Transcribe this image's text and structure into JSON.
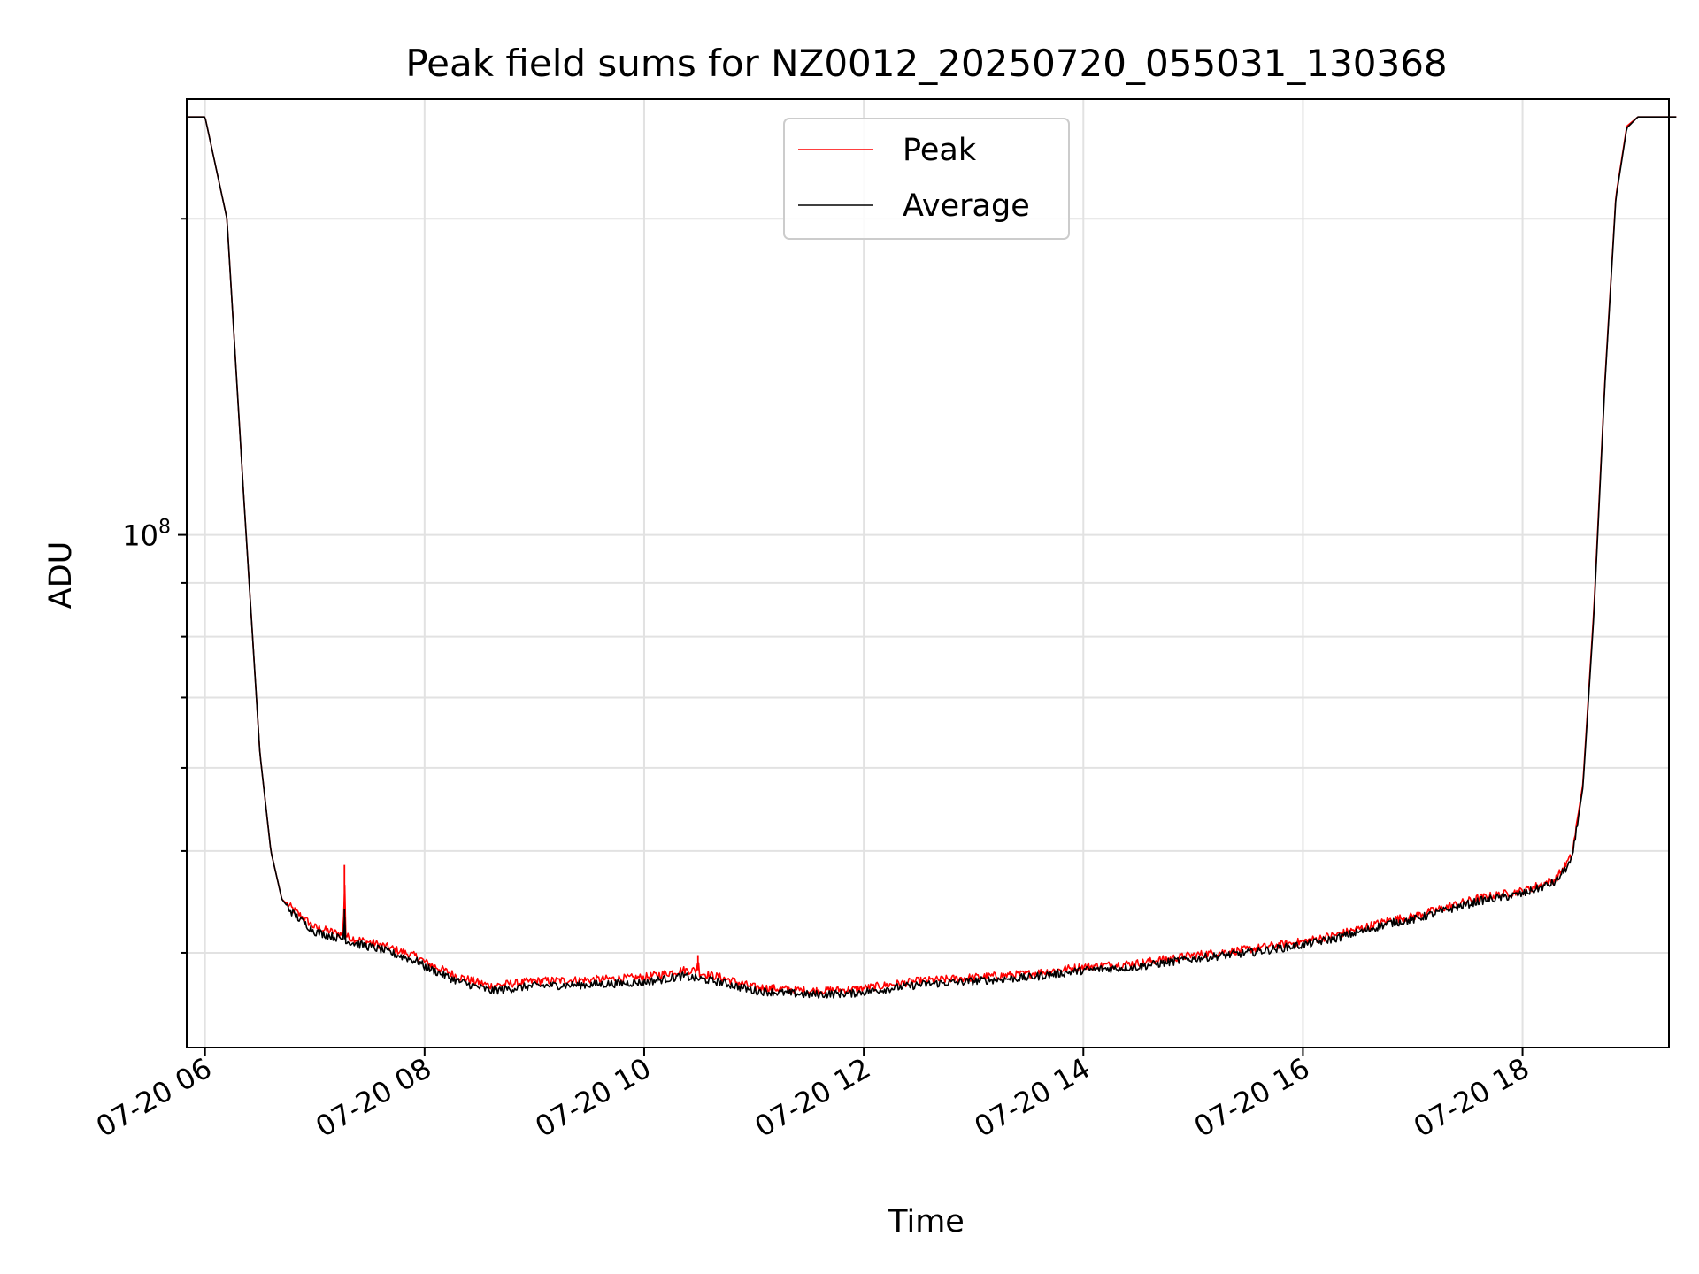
{
  "chart_data": {
    "type": "line",
    "title": "Peak field sums for NZ0012_20250720_055031_130368",
    "xlabel": "Time",
    "ylabel": "ADU",
    "x_axis": {
      "type": "time",
      "range": [
        "07-20 05:50",
        "07-20 19:20"
      ],
      "ticks": [
        "07-20 06",
        "07-20 08",
        "07-20 10",
        "07-20 12",
        "07-20 14",
        "07-20 16",
        "07-20 18"
      ],
      "tick_hours": [
        6,
        8,
        10,
        12,
        14,
        16,
        18
      ]
    },
    "y_axis": {
      "scale": "log",
      "range": [
        32500000,
        260000000
      ],
      "major_ticks": [
        {
          "value": 100000000,
          "label_base": "10",
          "label_exp": "8"
        }
      ],
      "minor_ticks": [
        40000000,
        50000000,
        60000000,
        70000000,
        80000000,
        90000000,
        200000000
      ]
    },
    "grid": true,
    "legend": {
      "placement": "upper-center",
      "entries": [
        {
          "name": "Peak",
          "color": "#ff0000"
        },
        {
          "name": "Average",
          "color": "#000000"
        }
      ]
    },
    "series": [
      {
        "name": "Peak",
        "color": "#ff0000",
        "x_hours": [
          5.85,
          6.0,
          6.2,
          6.35,
          6.5,
          6.6,
          6.7,
          6.8,
          7.0,
          7.26,
          7.27,
          7.28,
          7.3,
          7.6,
          7.95,
          8.0,
          8.3,
          8.6,
          9.0,
          9.5,
          10.0,
          10.35,
          10.48,
          10.49,
          10.5,
          10.7,
          11.0,
          11.5,
          11.9,
          12.5,
          13.0,
          13.5,
          14.0,
          14.5,
          15.0,
          15.5,
          16.0,
          16.3,
          16.6,
          16.8,
          17.0,
          17.3,
          17.6,
          18.0,
          18.3,
          18.45,
          18.55,
          18.65,
          18.75,
          18.85,
          18.95,
          19.05,
          19.1,
          19.2,
          19.4
        ],
        "values": [
          250000000,
          250000000,
          200000000,
          110000000,
          62000000,
          50000000,
          45000000,
          44000000,
          42300000,
          41600000,
          48500000,
          41600000,
          41400000,
          40700000,
          39600000,
          39200000,
          38000000,
          37200000,
          37600000,
          37700000,
          37900000,
          38500000,
          38500000,
          39800000,
          38300000,
          37900000,
          37100000,
          36800000,
          36900000,
          37600000,
          37900000,
          38200000,
          38800000,
          39100000,
          39800000,
          40300000,
          41000000,
          41600000,
          42400000,
          43000000,
          43300000,
          44200000,
          45100000,
          45800000,
          47000000,
          49500000,
          58000000,
          85000000,
          140000000,
          210000000,
          245000000,
          250000000,
          250000000,
          250000000,
          250000000
        ]
      },
      {
        "name": "Average",
        "color": "#000000",
        "x_hours": [
          5.85,
          6.0,
          6.2,
          6.35,
          6.5,
          6.6,
          6.7,
          6.8,
          7.0,
          7.26,
          7.27,
          7.28,
          7.3,
          7.6,
          7.95,
          8.0,
          8.3,
          8.6,
          9.0,
          9.5,
          10.0,
          10.35,
          10.7,
          11.0,
          11.5,
          11.9,
          12.5,
          13.0,
          13.5,
          14.0,
          14.5,
          15.0,
          15.5,
          16.0,
          16.3,
          16.6,
          16.8,
          17.0,
          17.3,
          17.6,
          18.0,
          18.3,
          18.45,
          18.55,
          18.65,
          18.75,
          18.85,
          18.95,
          19.05,
          19.1,
          19.2,
          19.4
        ],
        "values": [
          250000000,
          250000000,
          200000000,
          110000000,
          62000000,
          50000000,
          45000000,
          43600000,
          41900000,
          41200000,
          44000000,
          41200000,
          41000000,
          40300000,
          39200000,
          38800000,
          37600000,
          36800000,
          37200000,
          37300000,
          37500000,
          38000000,
          37500000,
          36800000,
          36500000,
          36600000,
          37300000,
          37600000,
          37900000,
          38500000,
          38800000,
          39500000,
          40000000,
          40700000,
          41300000,
          42100000,
          42700000,
          43000000,
          43900000,
          44800000,
          45500000,
          46700000,
          49000000,
          57500000,
          84000000,
          139000000,
          209000000,
          244000000,
          250000000,
          250000000,
          250000000,
          250000000
        ]
      }
    ]
  }
}
